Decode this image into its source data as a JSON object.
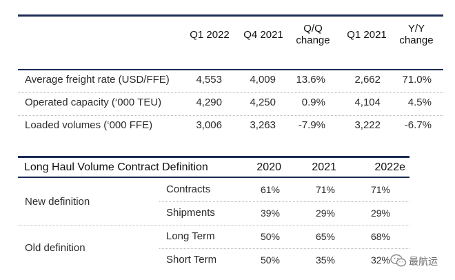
{
  "freight_table": {
    "headers": {
      "q1_2022": "Q1 2022",
      "q4_2021": "Q4 2021",
      "qq_line1": "Q/Q",
      "qq_line2": "change",
      "q1_2021": "Q1 2021",
      "yy_line1": "Y/Y",
      "yy_line2": "change"
    },
    "rows": [
      {
        "label": "Average freight rate (USD/FFE)",
        "q1_2022": "4,553",
        "q4_2021": "4,009",
        "qq": "13.6%",
        "q1_2021": "2,662",
        "yy": "71.0%"
      },
      {
        "label": "Operated capacity (‘000 TEU)",
        "q1_2022": "4,290",
        "q4_2021": "4,250",
        "qq": "0.9%",
        "q1_2021": "4,104",
        "yy": "4.5%"
      },
      {
        "label": "Loaded volumes (‘000 FFE)",
        "q1_2022": "3,006",
        "q4_2021": "3,263",
        "qq": "-7.9%",
        "q1_2021": "3,222",
        "yy": "-6.7%"
      }
    ]
  },
  "contract_table": {
    "title": "Long Haul Volume Contract Definition",
    "years": [
      "2020",
      "2021",
      "2022e"
    ],
    "groups": [
      {
        "name": "New definition",
        "rows": [
          {
            "label": "Contracts",
            "values": [
              "61%",
              "71%",
              "71%"
            ]
          },
          {
            "label": "Shipments",
            "values": [
              "39%",
              "29%",
              "29%"
            ]
          }
        ]
      },
      {
        "name": "Old definition",
        "rows": [
          {
            "label": "Long Term",
            "values": [
              "50%",
              "65%",
              "68%"
            ]
          },
          {
            "label": "Short Term",
            "values": [
              "50%",
              "35%",
              "32%"
            ]
          }
        ]
      }
    ]
  },
  "watermark": {
    "text": "最航运",
    "icon": "wechat-icon"
  },
  "colors": {
    "rule": "#1b2b55",
    "text": "#2a2a2a",
    "separator": "#b9bcc4"
  }
}
